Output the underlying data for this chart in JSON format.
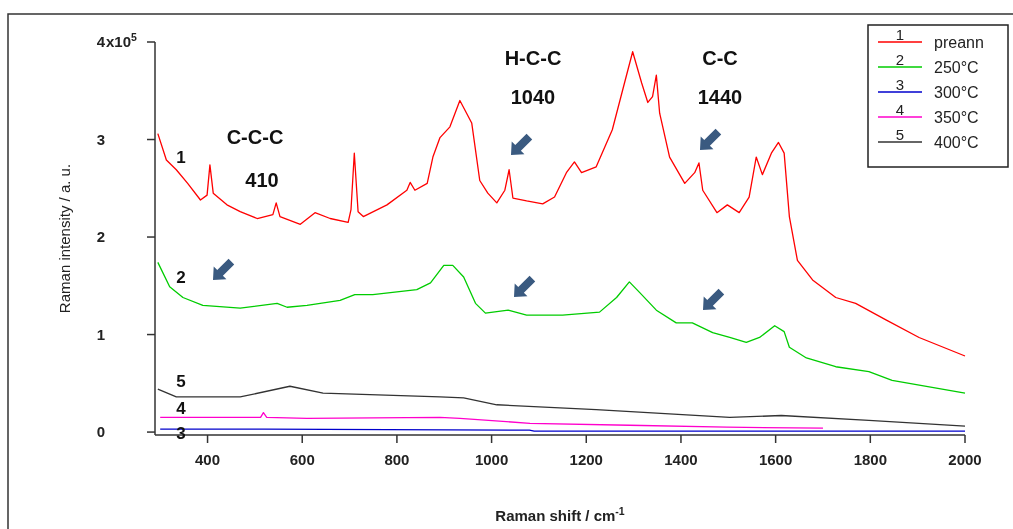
{
  "chart_data": {
    "type": "line",
    "xlabel": "Raman shift / cm$^{-1}$",
    "ylabel": "Raman intensity / a. u.",
    "xlim": [
      289,
      2000
    ],
    "xticks": [
      400,
      600,
      800,
      1000,
      1200,
      1400,
      1600,
      1800,
      2000
    ],
    "ylim": [
      -0.03,
      4
    ],
    "yticks": [
      0,
      1,
      2,
      3,
      4
    ],
    "grid": false,
    "legend": "top right",
    "marker": "none",
    "line_style": "solid",
    "series": [
      {
        "name": "preann",
        "color": "#ff0000",
        "x": [
          295,
          313,
          334,
          358,
          385,
          399,
          405,
          412,
          441,
          469,
          505,
          538,
          545,
          553,
          596,
          627,
          659,
          697,
          703,
          710,
          718,
          729,
          779,
          821,
          828,
          838,
          864,
          876,
          891,
          912,
          933,
          958,
          975,
          992,
          1011,
          1028,
          1037,
          1045,
          1074,
          1108,
          1133,
          1158,
          1175,
          1190,
          1221,
          1255,
          1277,
          1298,
          1317,
          1330,
          1340,
          1348,
          1355,
          1376,
          1408,
          1429,
          1438,
          1446,
          1476,
          1498,
          1523,
          1544,
          1559,
          1572,
          1591,
          1606,
          1618,
          1629,
          1646,
          1678,
          1727,
          1769,
          1833,
          1903,
          2000
        ],
        "values": [
          3.06,
          2.79,
          2.69,
          2.55,
          2.38,
          2.43,
          2.74,
          2.45,
          2.33,
          2.26,
          2.19,
          2.23,
          2.35,
          2.21,
          2.13,
          2.25,
          2.19,
          2.15,
          2.28,
          2.86,
          2.26,
          2.21,
          2.33,
          2.48,
          2.56,
          2.48,
          2.55,
          2.82,
          3.02,
          3.13,
          3.4,
          3.17,
          2.58,
          2.45,
          2.35,
          2.48,
          2.69,
          2.4,
          2.37,
          2.34,
          2.41,
          2.66,
          2.77,
          2.66,
          2.72,
          3.1,
          3.51,
          3.9,
          3.58,
          3.38,
          3.44,
          3.66,
          3.27,
          2.82,
          2.55,
          2.66,
          2.76,
          2.48,
          2.25,
          2.33,
          2.25,
          2.41,
          2.82,
          2.64,
          2.86,
          2.97,
          2.86,
          2.21,
          1.76,
          1.56,
          1.38,
          1.32,
          1.15,
          0.97,
          0.78
        ]
      },
      {
        "name": "250°C",
        "color": "#00cc00",
        "x": [
          295,
          320,
          348,
          390,
          469,
          547,
          568,
          610,
          680,
          711,
          749,
          842,
          871,
          899,
          918,
          941,
          966,
          987,
          1035,
          1074,
          1150,
          1228,
          1264,
          1291,
          1313,
          1348,
          1390,
          1424,
          1467,
          1503,
          1538,
          1566,
          1598,
          1618,
          1629,
          1665,
          1727,
          1797,
          1846,
          2000
        ],
        "values": [
          1.74,
          1.49,
          1.38,
          1.3,
          1.27,
          1.32,
          1.28,
          1.3,
          1.35,
          1.41,
          1.41,
          1.46,
          1.53,
          1.71,
          1.71,
          1.59,
          1.32,
          1.22,
          1.25,
          1.2,
          1.2,
          1.23,
          1.38,
          1.54,
          1.43,
          1.25,
          1.12,
          1.12,
          1.02,
          0.97,
          0.92,
          0.97,
          1.09,
          1.03,
          0.87,
          0.76,
          0.67,
          0.62,
          0.53,
          0.4
        ]
      },
      {
        "name": "300°C",
        "color": "#0000cc",
        "x": [
          300,
          520,
          1080,
          1090,
          2000
        ],
        "values": [
          0.03,
          0.03,
          0.02,
          0.01,
          0.01
        ]
      },
      {
        "name": "350°C",
        "color": "#ff00cc",
        "x": [
          300,
          512,
          518,
          525,
          610,
          891,
          933,
          1081,
          1291,
          1497,
          1700
        ],
        "values": [
          0.15,
          0.15,
          0.2,
          0.15,
          0.14,
          0.15,
          0.14,
          0.09,
          0.07,
          0.05,
          0.04
        ]
      },
      {
        "name": "400°C",
        "color": "#333333",
        "x": [
          295,
          334,
          469,
          574,
          644,
          891,
          941,
          1011,
          1221,
          1503,
          1612,
          1797,
          2000
        ],
        "values": [
          0.44,
          0.36,
          0.36,
          0.47,
          0.4,
          0.36,
          0.35,
          0.28,
          0.23,
          0.15,
          0.17,
          0.12,
          0.06
        ]
      }
    ],
    "annotations": [
      "1",
      "2",
      "3",
      "4",
      "5",
      "C-C-C",
      "410",
      "H-C-C",
      "1040",
      "C-C",
      "1440",
      "x10$^{5}$"
    ]
  }
}
